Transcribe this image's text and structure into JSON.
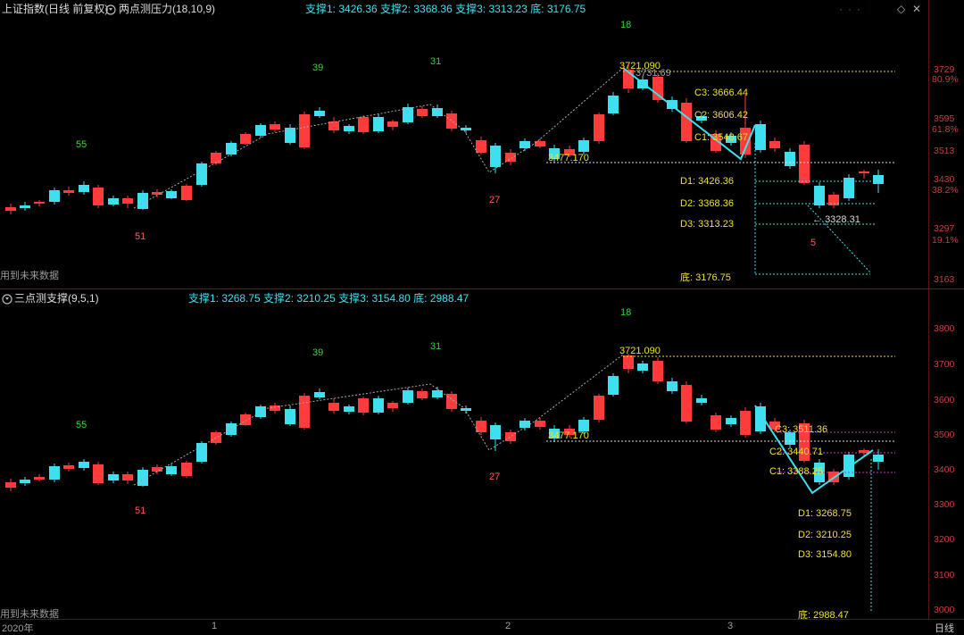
{
  "top_panel": {
    "title": "上证指数(日线 前复权)",
    "indicator_icon": "circle-settings-icon",
    "indicator_name": "两点测压力(18,10,9)",
    "support_header": "支撑1: 3426.36  支撑2: 3368.36  支撑3: 3313.23  底: 3176.75",
    "future_data": "用到未来数据",
    "counts": {
      "c18": "18",
      "c39": "39",
      "c31": "31",
      "c55": "55",
      "c27": "27",
      "c51": "51",
      "c5": "5"
    },
    "levels": {
      "high": "3721.090",
      "high2": "3731.69",
      "mid": "3477.170",
      "c3": "C3: 3666.44",
      "c2": "C2: 3606.42",
      "c1": "C1: 3548.67",
      "d1": "D1: 3426.36",
      "d2": "D2: 3368.36",
      "d3": "D3: 3313.23",
      "bottom": "底: 3176.75",
      "low": "3328.31"
    },
    "axis": [
      "3729",
      "3595",
      "3513",
      "3430",
      "3297",
      "3163"
    ],
    "pct": [
      "80.9%",
      "61.8%",
      "38.2%",
      "19.1%"
    ],
    "corner_icon": "diamond-icon",
    "close_icon": "close-icon"
  },
  "bottom_panel": {
    "indicator_name": "三点测支撑(9,5,1)",
    "support_header": "支撑1: 3268.75  支撑2: 3210.25  支撑3: 3154.80  底: 2988.47",
    "future_data": "用到未来数据",
    "counts": {
      "c18": "18",
      "c39": "39",
      "c31": "31",
      "c55": "55",
      "c27": "27",
      "c51": "51"
    },
    "levels": {
      "high": "3721.090",
      "mid": "3477.170",
      "c3": "C3: 3511.36",
      "c2": "C2: 3440.71",
      "c1": "C1: 3388.25",
      "d1": "D1: 3268.75",
      "d2": "D2: 3210.25",
      "d3": "D3: 3154.80",
      "bottom": "底: 2988.47"
    },
    "axis": [
      "3800",
      "3700",
      "3600",
      "3500",
      "3400",
      "3300",
      "3200",
      "3100",
      "3000"
    ]
  },
  "time_axis": {
    "year": "2020年",
    "m1": "1",
    "m2": "2",
    "m3": "3"
  },
  "period_label": "日线",
  "colors": {
    "up": "#ff3b3b",
    "down": "#3ee0f0",
    "level": "#f0e030",
    "guide": "#3ee0f0"
  }
}
